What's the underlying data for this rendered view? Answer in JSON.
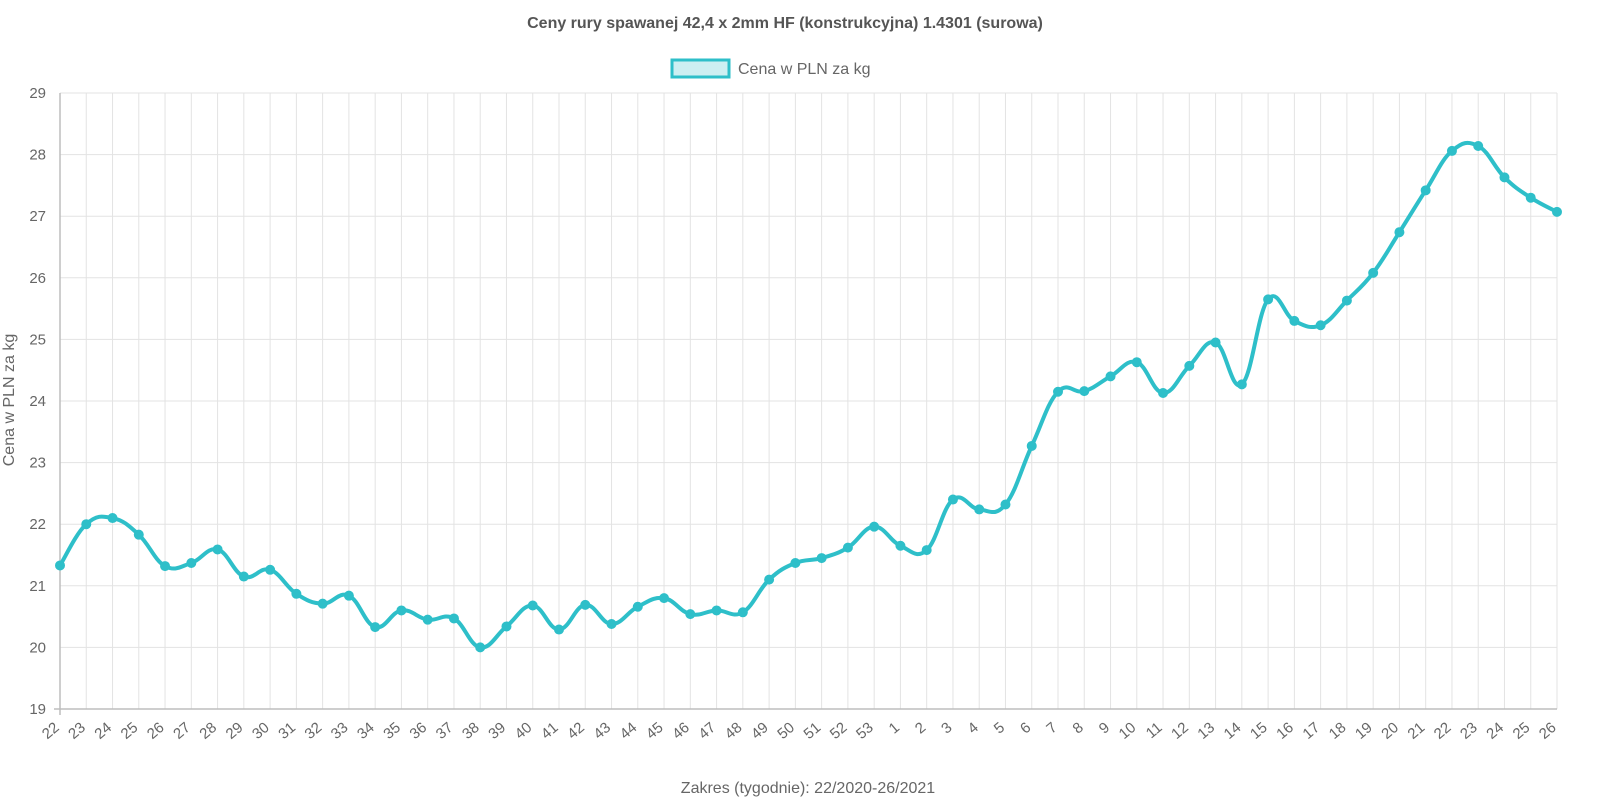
{
  "chart_data": {
    "type": "line",
    "title": "Ceny rury spawanej  42,4 x 2mm HF (konstrukcyjna) 1.4301 (surowa)",
    "xlabel": "Zakres (tygodnie): 22/2020-26/2021",
    "ylabel": "Cena w PLN za kg",
    "ylim": [
      19,
      29
    ],
    "yticks": [
      "19",
      "20",
      "21",
      "22",
      "23",
      "24",
      "25",
      "26",
      "27",
      "28",
      "29"
    ],
    "grid": true,
    "legend_position": "top-center",
    "categories": [
      "22",
      "23",
      "24",
      "25",
      "26",
      "27",
      "28",
      "29",
      "30",
      "31",
      "32",
      "33",
      "34",
      "35",
      "36",
      "37",
      "38",
      "39",
      "40",
      "41",
      "42",
      "43",
      "44",
      "45",
      "46",
      "47",
      "48",
      "49",
      "50",
      "51",
      "52",
      "53",
      "1",
      "2",
      "3",
      "4",
      "5",
      "6",
      "7",
      "8",
      "9",
      "10",
      "11",
      "12",
      "13",
      "14",
      "15",
      "16",
      "17",
      "18",
      "19",
      "20",
      "21",
      "22",
      "23",
      "24",
      "25",
      "26"
    ],
    "series": [
      {
        "name": "Cena w PLN za kg",
        "color": "#2ebfc9",
        "fill": "#cdeff2",
        "values": [
          21.33,
          22.0,
          22.1,
          21.83,
          21.32,
          21.37,
          21.59,
          21.15,
          21.26,
          20.87,
          20.71,
          20.84,
          20.33,
          20.6,
          20.45,
          20.47,
          20.0,
          20.34,
          20.68,
          20.29,
          20.69,
          20.38,
          20.66,
          20.8,
          20.54,
          20.6,
          20.57,
          21.1,
          21.37,
          21.45,
          21.62,
          21.96,
          21.65,
          21.58,
          22.4,
          22.24,
          22.32,
          23.27,
          24.15,
          24.16,
          24.4,
          24.63,
          24.13,
          24.57,
          24.95,
          24.27,
          25.65,
          25.3,
          25.23,
          25.63,
          26.08,
          26.74,
          27.42,
          28.06,
          28.14,
          27.63,
          27.3,
          27.07
        ]
      }
    ]
  }
}
